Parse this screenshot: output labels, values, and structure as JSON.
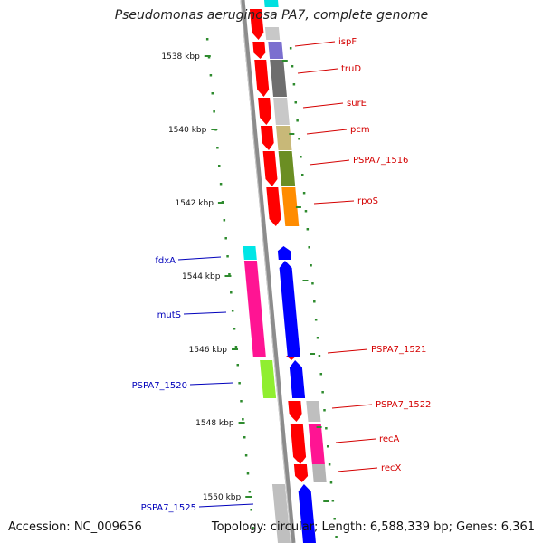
{
  "title": "Pseudomonas aeruginosa PA7, complete genome",
  "footer": {
    "accession": "Accession: NC_009656",
    "topology": "Topology: circular; Length: 6,588,339 bp; Genes: 6,361"
  },
  "colors": {
    "forward_label": "#d40000",
    "reverse_label": "#0000bb",
    "tick": "#2e8b2e",
    "backbone": "#8c8c8c"
  },
  "ticks": [
    {
      "label": "1538 kbp"
    },
    {
      "label": "1540 kbp"
    },
    {
      "label": "1542 kbp"
    },
    {
      "label": "1544 kbp"
    },
    {
      "label": "1546 kbp"
    },
    {
      "label": "1548 kbp"
    },
    {
      "label": "1550 kbp"
    }
  ],
  "forward_genes": [
    {
      "label": "ispF",
      "color": "#ff0000"
    },
    {
      "label": "truD",
      "color": "#ff0000"
    },
    {
      "label": "surE",
      "color": "#ff0000"
    },
    {
      "label": "pcm",
      "color": "#ff0000"
    },
    {
      "label": "PSPA7_1516",
      "color": "#ff0000"
    },
    {
      "label": "rpoS",
      "color": "#ff0000"
    },
    {
      "label": "PSPA7_1521",
      "color": "#ff0000"
    },
    {
      "label": "PSPA7_1522",
      "color": "#ff0000"
    },
    {
      "label": "recA",
      "color": "#ff0000"
    },
    {
      "label": "recX",
      "color": "#ff0000"
    }
  ],
  "reverse_genes": [
    {
      "label": "fdxA",
      "color": "#0000ff"
    },
    {
      "label": "mutS",
      "color": "#0000ff"
    },
    {
      "label": "PSPA7_1520",
      "color": "#0000ff"
    },
    {
      "label": "PSPA7_1525",
      "color": "#0000ff"
    }
  ]
}
